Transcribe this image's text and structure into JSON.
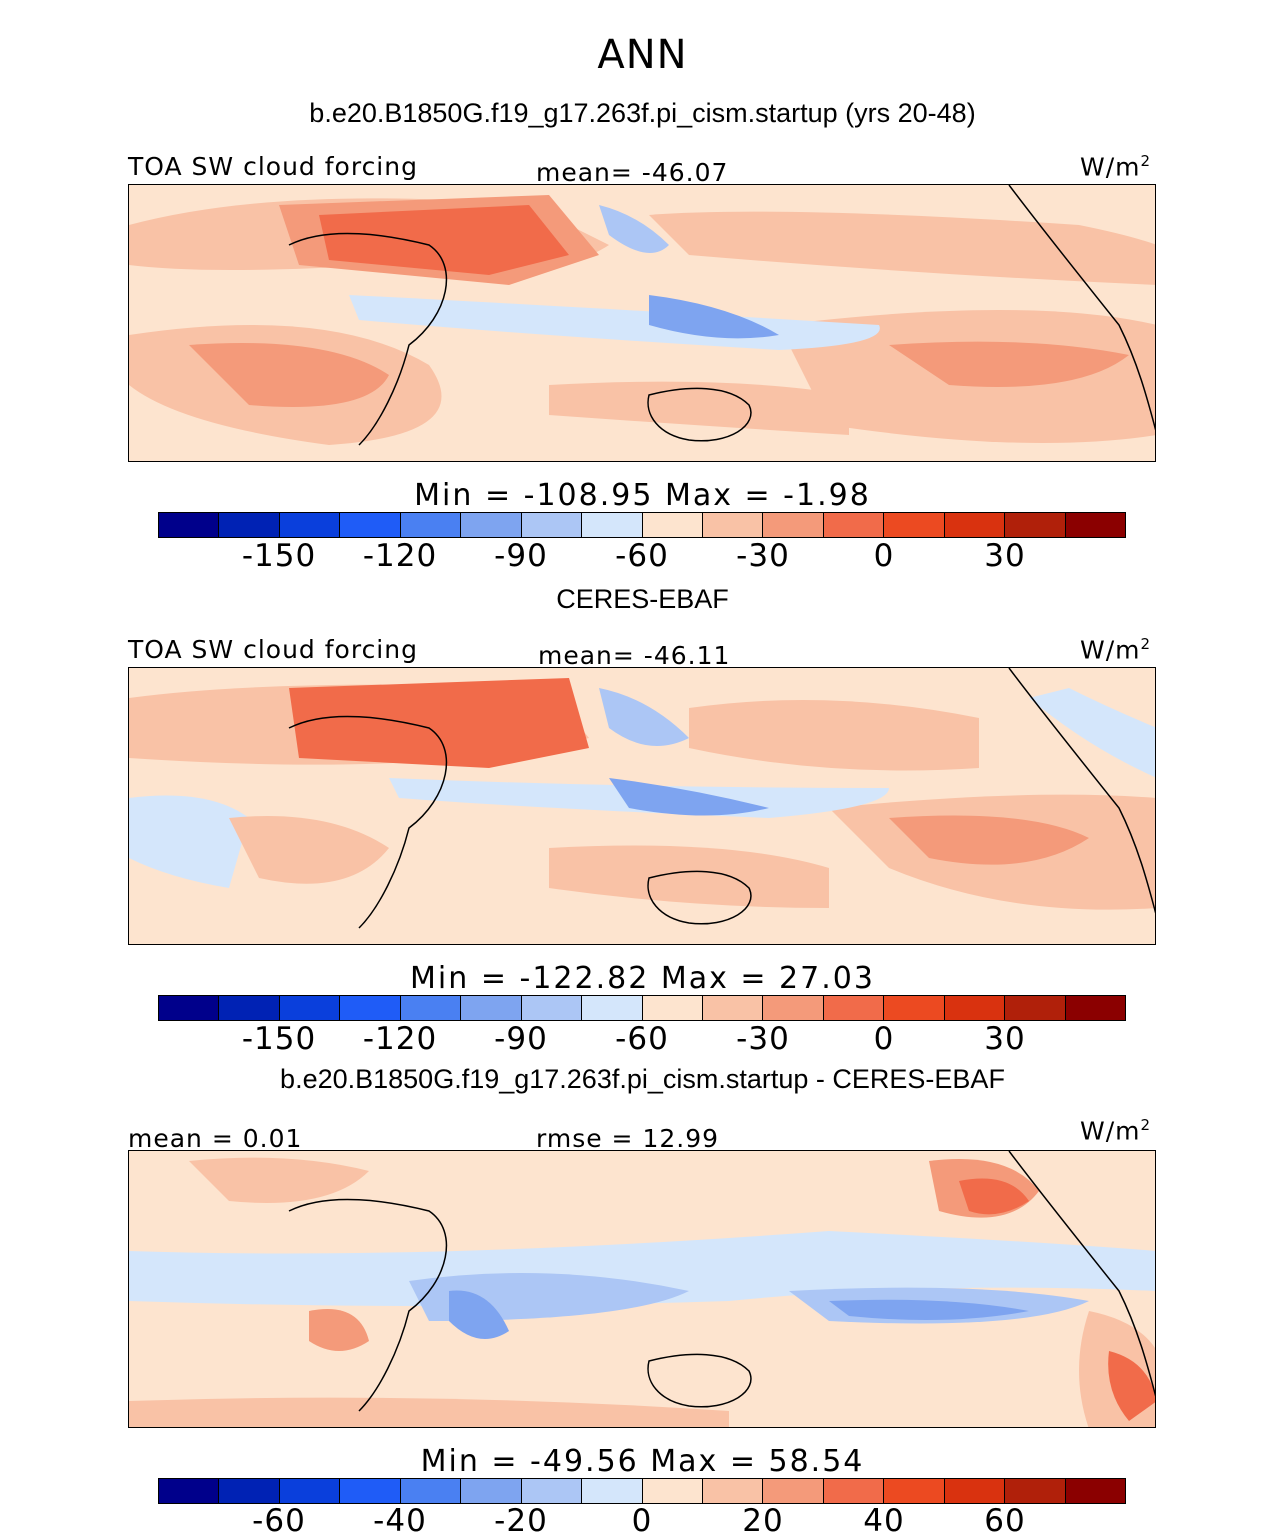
{
  "page": {
    "title": "ANN"
  },
  "panels": [
    {
      "subtitle": "b.e20.B1850G.f19_g17.263f.pi_cism.startup (yrs 20-48)",
      "left_label": "TOA SW cloud forcing",
      "center_label": "mean= -46.07",
      "units": "W/m",
      "units_exp": "2",
      "stats": "Min = -108.95 Max = -1.98",
      "colorbar_ticks": [
        "-150",
        "-120",
        "-90",
        "-60",
        "-30",
        "0",
        "30"
      ]
    },
    {
      "subtitle": "CERES-EBAF",
      "left_label": "TOA SW cloud forcing",
      "center_label": "mean= -46.11",
      "units": "W/m",
      "units_exp": "2",
      "stats": "Min = -122.82 Max = 27.03",
      "colorbar_ticks": [
        "-150",
        "-120",
        "-90",
        "-60",
        "-30",
        "0",
        "30"
      ]
    },
    {
      "subtitle": "b.e20.B1850G.f19_g17.263f.pi_cism.startup - CERES-EBAF",
      "left_label": "mean = 0.01",
      "center_label": "rmse = 12.99",
      "units": "W/m",
      "units_exp": "2",
      "stats": "Min = -49.56 Max = 58.54",
      "colorbar_ticks": [
        "-60",
        "-40",
        "-20",
        "0",
        "20",
        "40",
        "60"
      ]
    }
  ],
  "chart_data": [
    {
      "type": "heatmap",
      "title": "TOA SW cloud forcing",
      "mean": -46.07,
      "min": -108.95,
      "max": -1.98,
      "units": "W/m2",
      "colorbar_ticks": [
        -150,
        -120,
        -90,
        -60,
        -30,
        0,
        30
      ]
    },
    {
      "type": "heatmap",
      "title": "TOA SW cloud forcing",
      "mean": -46.11,
      "min": -122.82,
      "max": 27.03,
      "units": "W/m2",
      "colorbar_ticks": [
        -150,
        -120,
        -90,
        -60,
        -30,
        0,
        30
      ]
    },
    {
      "type": "heatmap",
      "title": "b.e20.B1850G.f19_g17.263f.pi_cism.startup - CERES-EBAF",
      "mean": 0.01,
      "rmse": 12.99,
      "min": -49.56,
      "max": 58.54,
      "units": "W/m2",
      "colorbar_ticks": [
        -60,
        -40,
        -20,
        0,
        20,
        40,
        60
      ]
    }
  ],
  "colors": {
    "scale": [
      "#00008b",
      "#0022b4",
      "#0a3fdc",
      "#1f5cf7",
      "#4a80f2",
      "#7ea4f0",
      "#acc6f5",
      "#d4e6fb",
      "#fde4cf",
      "#f9c2a6",
      "#f49a7a",
      "#f16b4a",
      "#ec4a21",
      "#d9320f",
      "#b0200a",
      "#8b0000"
    ]
  }
}
